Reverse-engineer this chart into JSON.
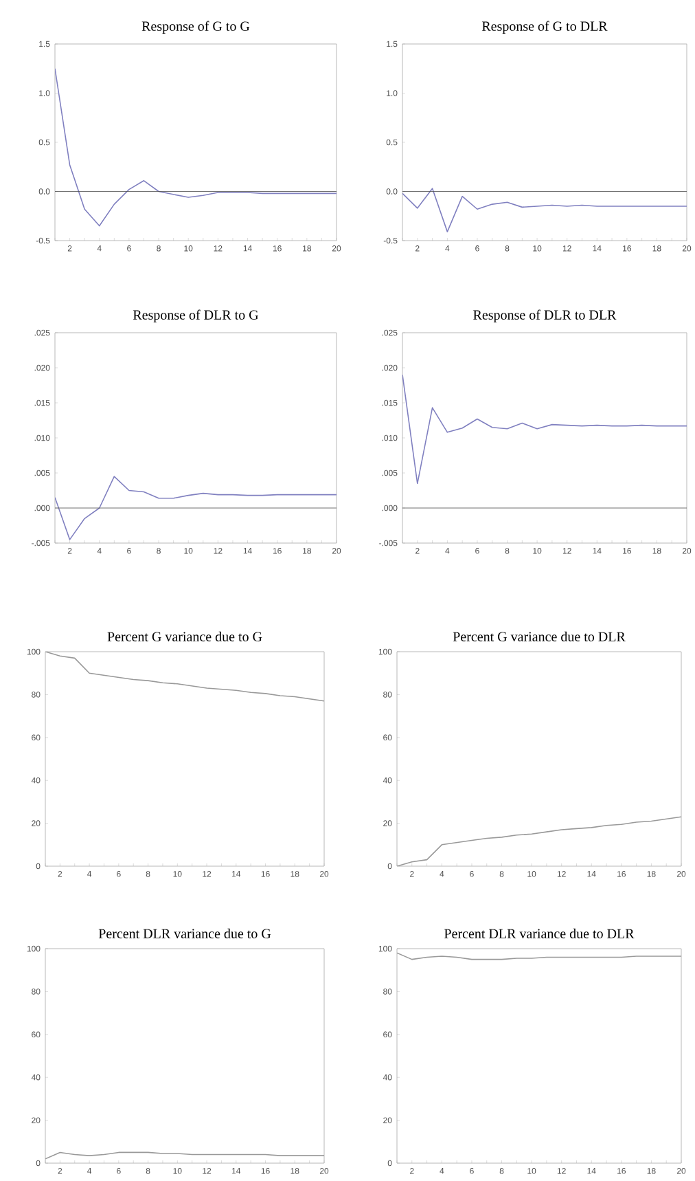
{
  "chart_data": [
    {
      "type": "line",
      "title": "Response of G to G",
      "x": [
        1,
        2,
        3,
        4,
        5,
        6,
        7,
        8,
        9,
        10,
        11,
        12,
        13,
        14,
        15,
        16,
        17,
        18,
        19,
        20
      ],
      "values": [
        1.25,
        0.27,
        -0.18,
        -0.35,
        -0.13,
        0.02,
        0.11,
        0.0,
        -0.03,
        -0.06,
        -0.04,
        -0.01,
        -0.01,
        -0.01,
        -0.02,
        -0.02,
        -0.02,
        -0.02,
        -0.02,
        -0.02
      ],
      "color": "#8080c0",
      "xlim": [
        1,
        20
      ],
      "xticks": [
        {
          "value": 1,
          "label": null
        },
        2,
        {
          "value": 3,
          "label": null
        },
        4,
        {
          "value": 5,
          "label": null
        },
        6,
        {
          "value": 7,
          "label": null
        },
        8,
        {
          "value": 9,
          "label": null
        },
        10,
        {
          "value": 11,
          "label": null
        },
        12,
        {
          "value": 13,
          "label": null
        },
        14,
        {
          "value": 15,
          "label": null
        },
        16,
        {
          "value": 17,
          "label": null
        },
        18,
        {
          "value": 19,
          "label": null
        },
        20
      ],
      "ylim": [
        -0.5,
        1.5
      ],
      "yticks": [
        {
          "value": -0.5,
          "label": "-0.5"
        },
        {
          "value": 0,
          "label": "0.0"
        },
        {
          "value": 0.5,
          "label": "0.5"
        },
        {
          "value": 1,
          "label": "1.0"
        },
        {
          "value": 1.5,
          "label": "1.5"
        }
      ],
      "ref_lines": [
        {
          "axis": "y",
          "value": 0
        }
      ]
    },
    {
      "type": "line",
      "title": "Response of G to DLR",
      "x": [
        1,
        2,
        3,
        4,
        5,
        6,
        7,
        8,
        9,
        10,
        11,
        12,
        13,
        14,
        15,
        16,
        17,
        18,
        19,
        20
      ],
      "values": [
        -0.02,
        -0.17,
        0.03,
        -0.41,
        -0.05,
        -0.18,
        -0.13,
        -0.11,
        -0.16,
        -0.15,
        -0.14,
        -0.15,
        -0.14,
        -0.15,
        -0.15,
        -0.15,
        -0.15,
        -0.15,
        -0.15,
        -0.15
      ],
      "color": "#8080c0",
      "xlim": [
        1,
        20
      ],
      "xticks": [
        {
          "value": 1,
          "label": null
        },
        2,
        {
          "value": 3,
          "label": null
        },
        4,
        {
          "value": 5,
          "label": null
        },
        6,
        {
          "value": 7,
          "label": null
        },
        8,
        {
          "value": 9,
          "label": null
        },
        10,
        {
          "value": 11,
          "label": null
        },
        12,
        {
          "value": 13,
          "label": null
        },
        14,
        {
          "value": 15,
          "label": null
        },
        16,
        {
          "value": 17,
          "label": null
        },
        18,
        {
          "value": 19,
          "label": null
        },
        20
      ],
      "ylim": [
        -0.5,
        1.5
      ],
      "yticks": [
        {
          "value": -0.5,
          "label": "-0.5"
        },
        {
          "value": 0,
          "label": "0.0"
        },
        {
          "value": 0.5,
          "label": "0.5"
        },
        {
          "value": 1,
          "label": "1.0"
        },
        {
          "value": 1.5,
          "label": "1.5"
        }
      ],
      "ref_lines": [
        {
          "axis": "y",
          "value": 0
        }
      ]
    },
    {
      "type": "line",
      "title": "Response of DLR to G",
      "x": [
        1,
        2,
        3,
        4,
        5,
        6,
        7,
        8,
        9,
        10,
        11,
        12,
        13,
        14,
        15,
        16,
        17,
        18,
        19,
        20
      ],
      "values": [
        0.0015,
        -0.0045,
        -0.0015,
        0.0,
        0.0045,
        0.0025,
        0.0023,
        0.0014,
        0.0014,
        0.0018,
        0.0021,
        0.0019,
        0.0019,
        0.0018,
        0.0018,
        0.0019,
        0.0019,
        0.0019,
        0.0019,
        0.0019
      ],
      "color": "#8080c0",
      "xlim": [
        1,
        20
      ],
      "xticks": [
        {
          "value": 1,
          "label": null
        },
        2,
        {
          "value": 3,
          "label": null
        },
        4,
        {
          "value": 5,
          "label": null
        },
        6,
        {
          "value": 7,
          "label": null
        },
        8,
        {
          "value": 9,
          "label": null
        },
        10,
        {
          "value": 11,
          "label": null
        },
        12,
        {
          "value": 13,
          "label": null
        },
        14,
        {
          "value": 15,
          "label": null
        },
        16,
        {
          "value": 17,
          "label": null
        },
        18,
        {
          "value": 19,
          "label": null
        },
        20
      ],
      "ylim": [
        -0.005,
        0.025
      ],
      "yticks": [
        {
          "value": -0.005,
          "label": "-.005"
        },
        {
          "value": 0,
          "label": ".000"
        },
        {
          "value": 0.005,
          "label": ".005"
        },
        {
          "value": 0.01,
          "label": ".010"
        },
        {
          "value": 0.015,
          "label": ".015"
        },
        {
          "value": 0.02,
          "label": ".020"
        },
        {
          "value": 0.025,
          "label": ".025"
        }
      ],
      "ref_lines": [
        {
          "axis": "y",
          "value": 0
        }
      ]
    },
    {
      "type": "line",
      "title": "Response of DLR to DLR",
      "x": [
        1,
        2,
        3,
        4,
        5,
        6,
        7,
        8,
        9,
        10,
        11,
        12,
        13,
        14,
        15,
        16,
        17,
        18,
        19,
        20
      ],
      "values": [
        0.019,
        0.0035,
        0.0143,
        0.0108,
        0.0114,
        0.0127,
        0.0115,
        0.0113,
        0.0121,
        0.0113,
        0.0119,
        0.0118,
        0.0117,
        0.0118,
        0.0117,
        0.0117,
        0.0118,
        0.0117,
        0.0117,
        0.0117
      ],
      "color": "#8080c0",
      "xlim": [
        1,
        20
      ],
      "xticks": [
        {
          "value": 1,
          "label": null
        },
        2,
        {
          "value": 3,
          "label": null
        },
        4,
        {
          "value": 5,
          "label": null
        },
        6,
        {
          "value": 7,
          "label": null
        },
        8,
        {
          "value": 9,
          "label": null
        },
        10,
        {
          "value": 11,
          "label": null
        },
        12,
        {
          "value": 13,
          "label": null
        },
        14,
        {
          "value": 15,
          "label": null
        },
        16,
        {
          "value": 17,
          "label": null
        },
        18,
        {
          "value": 19,
          "label": null
        },
        20
      ],
      "ylim": [
        -0.005,
        0.025
      ],
      "yticks": [
        {
          "value": -0.005,
          "label": "-.005"
        },
        {
          "value": 0,
          "label": ".000"
        },
        {
          "value": 0.005,
          "label": ".005"
        },
        {
          "value": 0.01,
          "label": ".010"
        },
        {
          "value": 0.015,
          "label": ".015"
        },
        {
          "value": 0.02,
          "label": ".020"
        },
        {
          "value": 0.025,
          "label": ".025"
        }
      ],
      "ref_lines": [
        {
          "axis": "y",
          "value": 0
        }
      ]
    },
    {
      "type": "line",
      "title": "Percent G variance due to G",
      "x": [
        1,
        2,
        3,
        4,
        5,
        6,
        7,
        8,
        9,
        10,
        11,
        12,
        13,
        14,
        15,
        16,
        17,
        18,
        19,
        20
      ],
      "values": [
        100,
        98,
        97,
        90,
        89,
        88,
        87,
        86.5,
        85.5,
        85,
        84,
        83,
        82.5,
        82,
        81,
        80.5,
        79.5,
        79,
        78,
        77
      ],
      "color": "#999999",
      "xlim": [
        1,
        20
      ],
      "xticks": [
        {
          "value": 1,
          "label": null
        },
        2,
        {
          "value": 3,
          "label": null
        },
        4,
        {
          "value": 5,
          "label": null
        },
        6,
        {
          "value": 7,
          "label": null
        },
        8,
        {
          "value": 9,
          "label": null
        },
        10,
        {
          "value": 11,
          "label": null
        },
        12,
        {
          "value": 13,
          "label": null
        },
        14,
        {
          "value": 15,
          "label": null
        },
        16,
        {
          "value": 17,
          "label": null
        },
        18,
        {
          "value": 19,
          "label": null
        },
        20
      ],
      "ylim": [
        0,
        100
      ],
      "yticks": [
        0,
        20,
        40,
        60,
        80,
        100
      ]
    },
    {
      "type": "line",
      "title": "Percent G variance due to DLR",
      "x": [
        1,
        2,
        3,
        4,
        5,
        6,
        7,
        8,
        9,
        10,
        11,
        12,
        13,
        14,
        15,
        16,
        17,
        18,
        19,
        20
      ],
      "values": [
        0,
        2,
        3,
        10,
        11,
        12,
        13,
        13.5,
        14.5,
        15,
        16,
        17,
        17.5,
        18,
        19,
        19.5,
        20.5,
        21,
        22,
        23
      ],
      "color": "#999999",
      "xlim": [
        1,
        20
      ],
      "xticks": [
        {
          "value": 1,
          "label": null
        },
        2,
        {
          "value": 3,
          "label": null
        },
        4,
        {
          "value": 5,
          "label": null
        },
        6,
        {
          "value": 7,
          "label": null
        },
        8,
        {
          "value": 9,
          "label": null
        },
        10,
        {
          "value": 11,
          "label": null
        },
        12,
        {
          "value": 13,
          "label": null
        },
        14,
        {
          "value": 15,
          "label": null
        },
        16,
        {
          "value": 17,
          "label": null
        },
        18,
        {
          "value": 19,
          "label": null
        },
        20
      ],
      "ylim": [
        0,
        100
      ],
      "yticks": [
        0,
        20,
        40,
        60,
        80,
        100
      ]
    },
    {
      "type": "line",
      "title": "Percent DLR variance due to G",
      "x": [
        1,
        2,
        3,
        4,
        5,
        6,
        7,
        8,
        9,
        10,
        11,
        12,
        13,
        14,
        15,
        16,
        17,
        18,
        19,
        20
      ],
      "values": [
        2,
        5,
        4,
        3.5,
        4,
        5,
        5,
        5,
        4.5,
        4.5,
        4,
        4,
        4,
        4,
        4,
        4,
        3.5,
        3.5,
        3.5,
        3.5
      ],
      "color": "#999999",
      "xlim": [
        1,
        20
      ],
      "xticks": [
        {
          "value": 1,
          "label": null
        },
        2,
        {
          "value": 3,
          "label": null
        },
        4,
        {
          "value": 5,
          "label": null
        },
        6,
        {
          "value": 7,
          "label": null
        },
        8,
        {
          "value": 9,
          "label": null
        },
        10,
        {
          "value": 11,
          "label": null
        },
        12,
        {
          "value": 13,
          "label": null
        },
        14,
        {
          "value": 15,
          "label": null
        },
        16,
        {
          "value": 17,
          "label": null
        },
        18,
        {
          "value": 19,
          "label": null
        },
        20
      ],
      "ylim": [
        0,
        100
      ],
      "yticks": [
        0,
        20,
        40,
        60,
        80,
        100
      ]
    },
    {
      "type": "line",
      "title": "Percent DLR variance due to DLR",
      "x": [
        1,
        2,
        3,
        4,
        5,
        6,
        7,
        8,
        9,
        10,
        11,
        12,
        13,
        14,
        15,
        16,
        17,
        18,
        19,
        20
      ],
      "values": [
        98,
        95,
        96,
        96.5,
        96,
        95,
        95,
        95,
        95.5,
        95.5,
        96,
        96,
        96,
        96,
        96,
        96,
        96.5,
        96.5,
        96.5,
        96.5
      ],
      "color": "#999999",
      "xlim": [
        1,
        20
      ],
      "xticks": [
        {
          "value": 1,
          "label": null
        },
        2,
        {
          "value": 3,
          "label": null
        },
        4,
        {
          "value": 5,
          "label": null
        },
        6,
        {
          "value": 7,
          "label": null
        },
        8,
        {
          "value": 9,
          "label": null
        },
        10,
        {
          "value": 11,
          "label": null
        },
        12,
        {
          "value": 13,
          "label": null
        },
        14,
        {
          "value": 15,
          "label": null
        },
        16,
        {
          "value": 17,
          "label": null
        },
        18,
        {
          "value": 19,
          "label": null
        },
        20
      ],
      "ylim": [
        0,
        100
      ],
      "yticks": [
        0,
        20,
        40,
        60,
        80,
        100
      ]
    }
  ]
}
